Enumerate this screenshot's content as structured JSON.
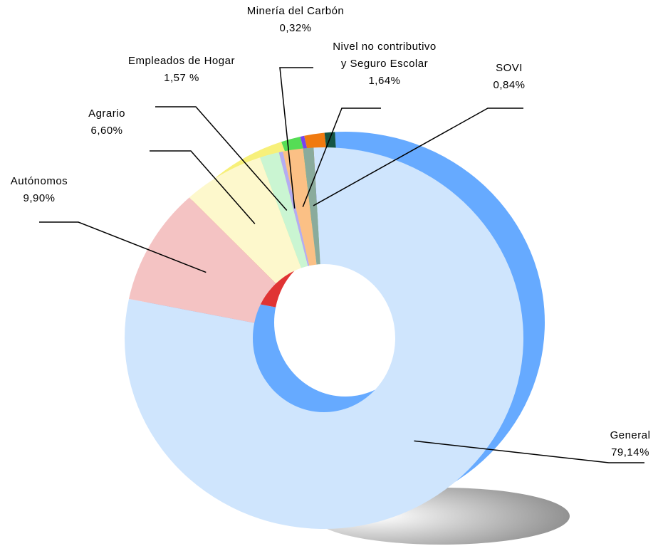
{
  "chart_data": {
    "type": "pie",
    "donut": true,
    "categories": [
      "General",
      "Autónomos",
      "Agrario",
      "Empleados de Hogar",
      "Minería del Carbón",
      "Nivel no contributivo y Seguro Escolar",
      "SOVI"
    ],
    "values": [
      79.14,
      9.9,
      6.6,
      1.57,
      0.32,
      1.64,
      0.84
    ],
    "value_labels": [
      "79,14%",
      "9,90%",
      "6,60%",
      "1,57 %",
      "0,32%",
      "1,64%",
      "0,84%"
    ],
    "colors": [
      "#cfe5fd",
      "#f4c3c3",
      "#fdf8cc",
      "#caf5d2",
      "#b4acf2",
      "#fbc085",
      "#8aab9c"
    ],
    "side_colors": [
      "#66aaff",
      "#e03434",
      "#f7f07a",
      "#55dd55",
      "#7744ee",
      "#f07a10",
      "#155544"
    ]
  }
}
